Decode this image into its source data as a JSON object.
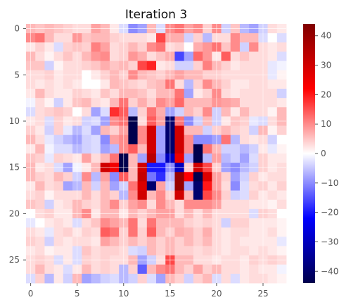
{
  "chart_data": {
    "type": "heatmap",
    "title": "Iteration 3",
    "rows": 28,
    "cols": 28,
    "x_ticks": [
      0,
      5,
      10,
      15,
      20,
      25
    ],
    "y_ticks": [
      0,
      5,
      10,
      15,
      20,
      25
    ],
    "colormap": "seismic",
    "vmin": -44,
    "vmax": 44,
    "colorbar_ticks": [
      40,
      30,
      20,
      10,
      0,
      -10,
      -20,
      -30,
      -40
    ],
    "grid": true,
    "background_color": "#ffffff",
    "plot_grid_color": "#ffffff",
    "text_color": "#555555",
    "values": [
      [
        6,
        5,
        6,
        5,
        4,
        3,
        3,
        8,
        6,
        2,
        -3,
        -10,
        -8,
        6,
        -3,
        10,
        12,
        8,
        10,
        4,
        10,
        -4,
        5,
        -6,
        -8,
        -4,
        3,
        2
      ],
      [
        10,
        12,
        6,
        3,
        3,
        9,
        5,
        6,
        6,
        4,
        3,
        3,
        3,
        2,
        16,
        7,
        7,
        -4,
        4,
        -6,
        3,
        3,
        10,
        6,
        6,
        -3,
        0,
        -3
      ],
      [
        2,
        4,
        2,
        -3,
        4,
        5,
        4,
        11,
        8,
        3,
        4,
        6,
        4,
        10,
        12,
        3,
        4,
        0,
        7,
        9,
        12,
        5,
        10,
        -4,
        10,
        3,
        2,
        3
      ],
      [
        6,
        3,
        1,
        3,
        5,
        3,
        6,
        9,
        10,
        3,
        4,
        9,
        7,
        3,
        5,
        7,
        -16,
        -8,
        13,
        9,
        2,
        14,
        3,
        5,
        3,
        3,
        2,
        -3
      ],
      [
        5,
        5,
        -4,
        1,
        3,
        3,
        4,
        5,
        7,
        5,
        6,
        4,
        16,
        19,
        2,
        3,
        -4,
        -4,
        4,
        11,
        6,
        4,
        2,
        3,
        3,
        3,
        -2,
        -1
      ],
      [
        3,
        3,
        4,
        2,
        3,
        3,
        0,
        2,
        4,
        6,
        4,
        10,
        6,
        5,
        4,
        6,
        8,
        6,
        6,
        4,
        4,
        3,
        3,
        3,
        3,
        3,
        -2,
        1
      ],
      [
        3,
        2,
        3,
        2,
        3,
        2,
        0,
        0,
        2,
        6,
        5,
        4,
        3,
        5,
        6,
        12,
        3,
        -6,
        4,
        10,
        6,
        4,
        2,
        2,
        3,
        3,
        2,
        2
      ],
      [
        2,
        6,
        3,
        2,
        2,
        4,
        3,
        2,
        5,
        3,
        6,
        6,
        5,
        3,
        6,
        6,
        12,
        -8,
        2,
        4,
        10,
        3,
        2,
        3,
        3,
        3,
        3,
        -4
      ],
      [
        -1,
        3,
        1,
        -4,
        2,
        5,
        6,
        3,
        2,
        6,
        12,
        4,
        7,
        4,
        10,
        8,
        13,
        6,
        6,
        6,
        9,
        8,
        7,
        3,
        3,
        3,
        3,
        2
      ],
      [
        -3,
        3,
        4,
        5,
        4,
        0,
        3,
        -8,
        -3,
        18,
        14,
        -6,
        4,
        12,
        7,
        -8,
        -4,
        6,
        4,
        10,
        -4,
        6,
        2,
        6,
        3,
        3,
        1,
        6
      ],
      [
        2,
        3,
        -3,
        4,
        2,
        3,
        -4,
        -3,
        -8,
        10,
        12,
        -44,
        3,
        14,
        8,
        -40,
        12,
        -10,
        -4,
        6,
        -4,
        2,
        5,
        4,
        -2,
        -3,
        3,
        6
      ],
      [
        4,
        2,
        -4,
        4,
        -2,
        -6,
        -3,
        -8,
        6,
        4,
        8,
        -44,
        10,
        30,
        -8,
        -40,
        30,
        6,
        6,
        -4,
        4,
        6,
        4,
        3,
        -4,
        6,
        1,
        4
      ],
      [
        6,
        3,
        -2,
        -4,
        -6,
        -8,
        -4,
        -3,
        -10,
        8,
        10,
        -44,
        10,
        30,
        -8,
        -40,
        30,
        10,
        -10,
        -10,
        -8,
        12,
        -6,
        3,
        2,
        3,
        -4,
        0
      ],
      [
        2,
        6,
        -1,
        -3,
        -3,
        -6,
        -4,
        -3,
        -8,
        -6,
        10,
        14,
        6,
        30,
        -8,
        -40,
        30,
        10,
        -44,
        12,
        6,
        -4,
        -4,
        -6,
        -4,
        2,
        -2,
        1
      ],
      [
        5,
        4,
        -2,
        4,
        3,
        2,
        8,
        3,
        6,
        12,
        -44,
        6,
        -8,
        34,
        -10,
        -30,
        25,
        -8,
        -44,
        -6,
        8,
        -6,
        -4,
        -8,
        -3,
        4,
        2,
        2
      ],
      [
        6,
        2,
        3,
        -3,
        -8,
        -1,
        2,
        6,
        30,
        24,
        -44,
        6,
        30,
        -20,
        -20,
        -10,
        -30,
        4,
        30,
        16,
        4,
        -8,
        -10,
        -6,
        -4,
        4,
        2,
        3
      ],
      [
        6,
        4,
        3,
        6,
        4,
        -4,
        10,
        -6,
        8,
        -10,
        14,
        6,
        32,
        -12,
        -18,
        -6,
        40,
        22,
        -44,
        28,
        8,
        4,
        -8,
        -4,
        4,
        2,
        3,
        3
      ],
      [
        2,
        6,
        3,
        4,
        -8,
        -6,
        6,
        -4,
        6,
        -8,
        -4,
        12,
        28,
        -40,
        8,
        -4,
        40,
        -8,
        -40,
        20,
        8,
        3,
        -10,
        -3,
        3,
        4,
        2,
        4
      ],
      [
        3,
        4,
        1,
        3,
        3,
        3,
        6,
        3,
        6,
        4,
        -6,
        10,
        30,
        6,
        10,
        4,
        30,
        6,
        -40,
        16,
        10,
        4,
        -4,
        -3,
        4,
        2,
        3,
        2
      ],
      [
        5,
        4,
        -4,
        2,
        3,
        6,
        4,
        3,
        6,
        10,
        4,
        8,
        10,
        3,
        10,
        6,
        3,
        10,
        10,
        10,
        8,
        3,
        3,
        3,
        2,
        2,
        1,
        3
      ],
      [
        0,
        3,
        4,
        2,
        2,
        6,
        10,
        2,
        6,
        6,
        2,
        6,
        4,
        6,
        8,
        8,
        3,
        6,
        3,
        6,
        3,
        3,
        3,
        3,
        -3,
        4,
        3,
        0
      ],
      [
        -2,
        0,
        2,
        3,
        2,
        -3,
        3,
        5,
        10,
        8,
        6,
        12,
        3,
        12,
        6,
        6,
        6,
        4,
        3,
        4,
        3,
        -4,
        4,
        4,
        2,
        2,
        2,
        1
      ],
      [
        3,
        2,
        -2,
        3,
        4,
        2,
        4,
        3,
        14,
        12,
        4,
        12,
        4,
        14,
        6,
        4,
        7,
        6,
        4,
        7,
        3,
        2,
        3,
        3,
        2,
        2,
        3,
        1
      ],
      [
        4,
        3,
        -4,
        3,
        2,
        3,
        3,
        2,
        8,
        6,
        4,
        6,
        4,
        6,
        4,
        6,
        4,
        6,
        4,
        6,
        3,
        2,
        3,
        2,
        2,
        2,
        2,
        -2
      ],
      [
        2,
        3,
        1,
        2,
        2,
        -3,
        5,
        3,
        4,
        4,
        3,
        -3,
        -4,
        6,
        4,
        6,
        4,
        4,
        3,
        4,
        3,
        2,
        3,
        3,
        2,
        3,
        2,
        1
      ],
      [
        3,
        4,
        3,
        -3,
        2,
        -3,
        4,
        3,
        4,
        3,
        3,
        6,
        -8,
        -4,
        3,
        16,
        6,
        6,
        3,
        3,
        2,
        3,
        3,
        2,
        4,
        3,
        4,
        3
      ],
      [
        3,
        6,
        3,
        2,
        -3,
        2,
        6,
        3,
        4,
        3,
        -6,
        4,
        -14,
        6,
        10,
        12,
        6,
        4,
        8,
        4,
        6,
        3,
        3,
        2,
        3,
        2,
        2,
        -1
      ],
      [
        -3,
        4,
        -6,
        2,
        -4,
        6,
        -8,
        -6,
        -4,
        -3,
        -6,
        -4,
        4,
        -3,
        -8,
        6,
        4,
        -4,
        4,
        6,
        -3,
        3,
        -3,
        2,
        3,
        3,
        2,
        1
      ]
    ]
  }
}
